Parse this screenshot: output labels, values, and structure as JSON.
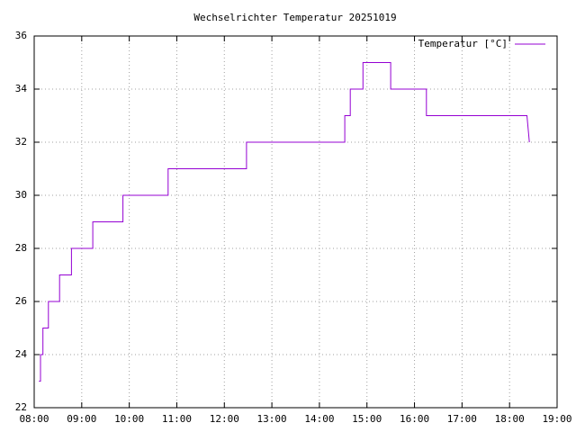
{
  "chart_data": {
    "type": "line",
    "title": "Wechselrichter Temperatur 20251019",
    "series": [
      {
        "name": "Temperatur [°C]",
        "color": "#9400d3",
        "x": [
          "08:06",
          "08:08",
          "08:08",
          "08:11",
          "08:11",
          "08:18",
          "08:18",
          "08:32",
          "08:32",
          "08:47",
          "08:47",
          "09:14",
          "09:14",
          "09:52",
          "09:52",
          "10:49",
          "10:49",
          "12:28",
          "12:28",
          "14:32",
          "14:32",
          "14:39",
          "14:39",
          "14:55",
          "14:55",
          "15:30",
          "15:30",
          "16:15",
          "16:15",
          "18:22",
          "18:25"
        ],
        "values": [
          23,
          23,
          24,
          24,
          25,
          25,
          26,
          26,
          27,
          27,
          28,
          28,
          29,
          29,
          30,
          30,
          31,
          31,
          32,
          32,
          33,
          33,
          34,
          34,
          35,
          35,
          34,
          34,
          33,
          33,
          32
        ]
      }
    ],
    "xlim": [
      "08:00",
      "19:00"
    ],
    "xticks": [
      "08:00",
      "09:00",
      "10:00",
      "11:00",
      "12:00",
      "13:00",
      "14:00",
      "15:00",
      "16:00",
      "17:00",
      "18:00",
      "19:00"
    ],
    "ylim": [
      22,
      36
    ],
    "yticks": [
      22,
      24,
      26,
      28,
      30,
      32,
      34,
      36
    ],
    "grid": true,
    "legend": "top-right"
  }
}
